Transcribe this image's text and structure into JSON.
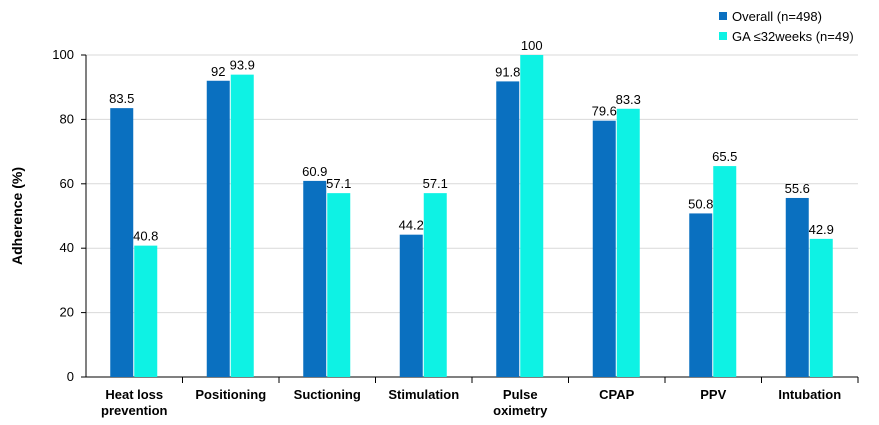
{
  "chart_data": {
    "type": "bar",
    "ylabel": "Adherence (%)",
    "xlabel": "",
    "ylim": [
      0,
      100
    ],
    "yticks": [
      "0",
      "20",
      "40",
      "60",
      "80",
      "100"
    ],
    "grid": true,
    "legend_position": "top-right",
    "categories": [
      [
        "Heat loss",
        "prevention"
      ],
      [
        "Positioning"
      ],
      [
        "Suctioning"
      ],
      [
        "Stimulation"
      ],
      [
        "Pulse",
        "oximetry"
      ],
      [
        "CPAP"
      ],
      [
        "PPV"
      ],
      [
        "Intubation"
      ]
    ],
    "series": [
      {
        "name": "Overall (n=498)",
        "color": "#0A70C0",
        "values": [
          83.5,
          92,
          60.9,
          44.2,
          91.8,
          79.6,
          50.8,
          55.6
        ],
        "labels": [
          "83.5",
          "92",
          "60.9",
          "44.2",
          "91.8",
          "79.6",
          "50.8",
          "55.6"
        ]
      },
      {
        "name": "GA ≤32weeks (n=49)",
        "color": "#0EF2E4",
        "values": [
          40.8,
          93.9,
          57.1,
          57.1,
          100,
          83.3,
          65.5,
          42.9
        ],
        "labels": [
          "40.8",
          "93.9",
          "57.1",
          "57.1",
          "100",
          "83.3",
          "65.5",
          "42.9"
        ]
      }
    ]
  }
}
